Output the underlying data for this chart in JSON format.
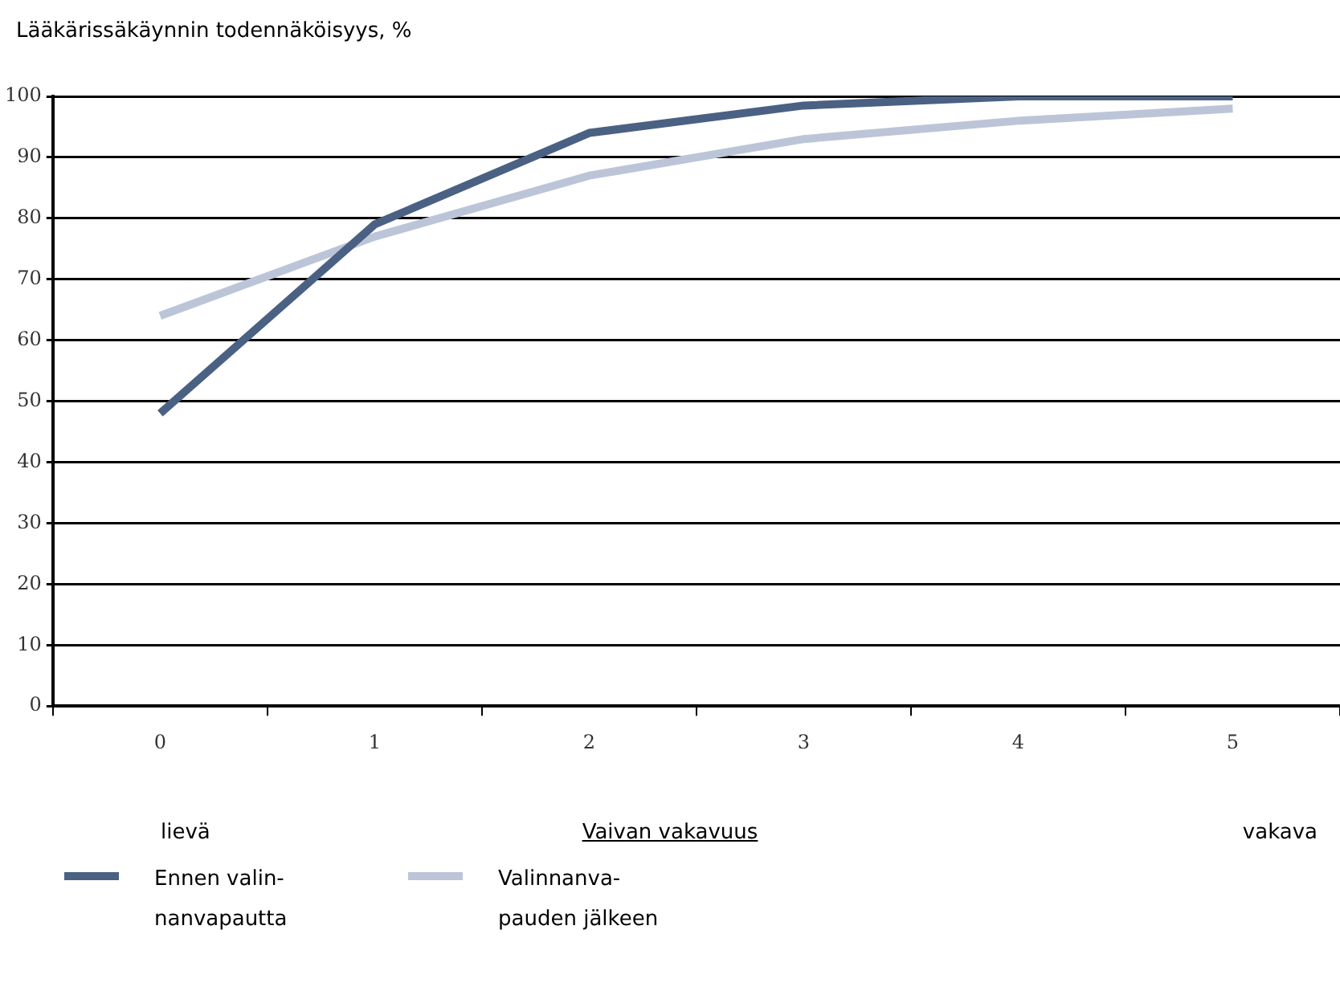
{
  "chart_data": {
    "type": "line",
    "ylabel": "Lääkärissäkäynnin todennäköisyys, %",
    "xlabel": "Vaivan vakavuus",
    "categories": [
      "0",
      "1",
      "2",
      "3",
      "4",
      "5"
    ],
    "series": [
      {
        "name": "Ennen valin-\nnanvapautta",
        "color": "#4a6184",
        "values": [
          48,
          79,
          94,
          98.5,
          100,
          100
        ]
      },
      {
        "name": "Valinnanva-\npauden jälkeen",
        "color": "#bcc5d8",
        "values": [
          64,
          77,
          87,
          93,
          96,
          98
        ]
      }
    ],
    "ylim": [
      0,
      100
    ],
    "yticks": [
      0,
      10,
      20,
      30,
      40,
      50,
      60,
      70,
      80,
      90,
      100
    ],
    "grid": "y",
    "legend": "bottom left",
    "marker": "none",
    "line_style": "solid",
    "annotations": [
      "lievä",
      "vakava"
    ]
  }
}
